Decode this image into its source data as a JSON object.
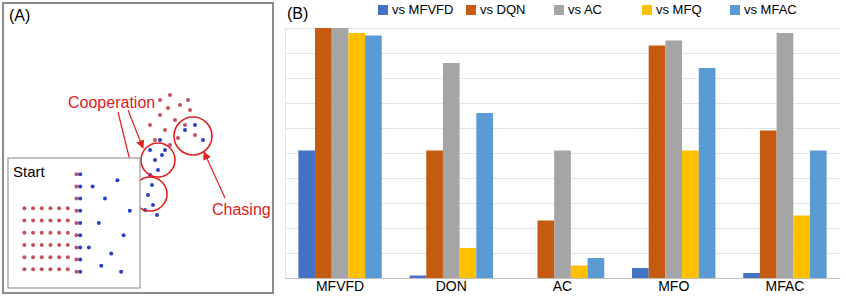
{
  "chart_data": [
    {
      "type": "scatter",
      "title": "(A)",
      "xlim": [
        0,
        270
      ],
      "ylim": [
        0,
        290
      ],
      "tick_labels": false,
      "annotations": [
        "Cooperation",
        "Chasing"
      ],
      "series": [
        {
          "color": "#c8505a",
          "x": [
            157,
            167,
            177,
            187,
            172,
            162,
            182,
            152,
            167,
            192,
            157,
            147,
            175,
            185,
            165
          ],
          "values": [
            193,
            198,
            188,
            183,
            173,
            163,
            168,
            153,
            148,
            158,
            178,
            168,
            155,
            193,
            185
          ]
        },
        {
          "color": "#2a3fc8",
          "x": [
            147,
            152,
            155,
            149,
            145,
            150,
            154,
            147,
            182,
            192,
            200,
            157,
            159,
            162,
            142
          ],
          "values": [
            143,
            133,
            123,
            108,
            98,
            88,
            78,
            118,
            163,
            168,
            153,
            153,
            138,
            143,
            83
          ]
        }
      ]
    },
    {
      "type": "scatter",
      "title": "Start",
      "xlim": [
        0,
        100
      ],
      "ylim": [
        0,
        100
      ],
      "tick_labels": false,
      "series": [
        {
          "color": "#c8505a",
          "x": [
            10,
            17,
            24,
            31,
            38,
            45,
            10,
            17,
            24,
            31,
            38,
            45,
            10,
            17,
            24,
            31,
            38,
            45,
            10,
            17,
            24,
            31,
            38,
            45,
            10,
            17,
            24,
            31,
            38,
            45,
            10,
            17,
            24,
            31,
            38,
            45,
            52,
            52,
            52,
            52,
            52,
            52,
            52,
            52,
            52
          ],
          "values": [
            12,
            12,
            12,
            12,
            12,
            12,
            22,
            22,
            22,
            22,
            22,
            22,
            32,
            32,
            32,
            32,
            32,
            32,
            42,
            42,
            42,
            42,
            42,
            42,
            52,
            52,
            52,
            52,
            52,
            52,
            62,
            62,
            62,
            62,
            62,
            62,
            10,
            20,
            30,
            40,
            50,
            60,
            70,
            80,
            90
          ]
        },
        {
          "color": "#2a3fc8",
          "x": [
            55,
            55,
            55,
            55,
            55,
            55,
            55,
            55,
            55,
            65,
            75,
            85,
            70,
            90,
            80,
            62,
            95,
            72,
            88
          ],
          "values": [
            10,
            20,
            30,
            40,
            50,
            60,
            70,
            80,
            90,
            80,
            70,
            85,
            50,
            40,
            25,
            30,
            60,
            15,
            10
          ]
        }
      ]
    },
    {
      "type": "bar",
      "title": "(B)",
      "categories": [
        "MFVFD",
        "DON",
        "AC",
        "MFO",
        "MFAC"
      ],
      "series": [
        {
          "name": "vs MFVFD",
          "color": "#4472c4",
          "values": [
            0.51,
            0.01,
            0,
            0.04,
            0.02
          ]
        },
        {
          "name": "vs DQN",
          "color": "#c55a11",
          "values": [
            1,
            0.51,
            0.23,
            0.93,
            0.59
          ]
        },
        {
          "name": "vs AC",
          "color": "#a5a5a5",
          "values": [
            1,
            0.86,
            0.51,
            0.95,
            0.98
          ]
        },
        {
          "name": "vs MFQ",
          "color": "#ffc000",
          "values": [
            0.98,
            0.12,
            0.05,
            0.51,
            0.25
          ]
        },
        {
          "name": "vs MFAC",
          "color": "#5b9bd5",
          "values": [
            0.97,
            0.66,
            0.08,
            0.84,
            0.51
          ]
        }
      ],
      "ylim": [
        0,
        1
      ],
      "yticks": [
        0,
        0.1,
        0.2,
        0.3,
        0.4,
        0.5,
        0.6,
        0.7,
        0.8,
        0.9,
        1
      ],
      "grid": true,
      "tick_labels": "x",
      "legend": "top"
    }
  ]
}
